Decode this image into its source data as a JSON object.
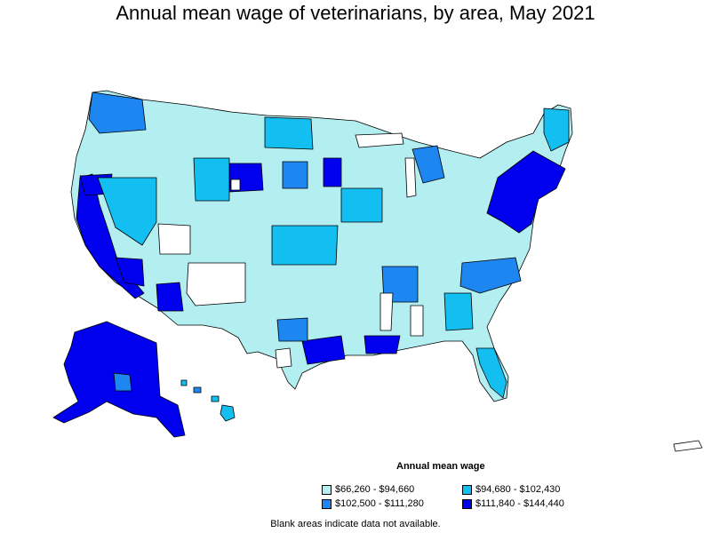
{
  "title": "Annual mean wage of veterinarians, by area, May 2021",
  "legend": {
    "title": "Annual mean wage",
    "items": [
      {
        "label": "$66,260 - $94,660",
        "color": "#b3eef0"
      },
      {
        "label": "$94,680 - $102,430",
        "color": "#12bff0"
      },
      {
        "label": "$102,500 - $111,280",
        "color": "#1e86f0"
      },
      {
        "label": "$111,840 - $144,440",
        "color": "#0000ee"
      }
    ]
  },
  "footnote": "Blank areas indicate data not available.",
  "colors": {
    "no_data": "#ffffff",
    "border": "#000000"
  }
}
